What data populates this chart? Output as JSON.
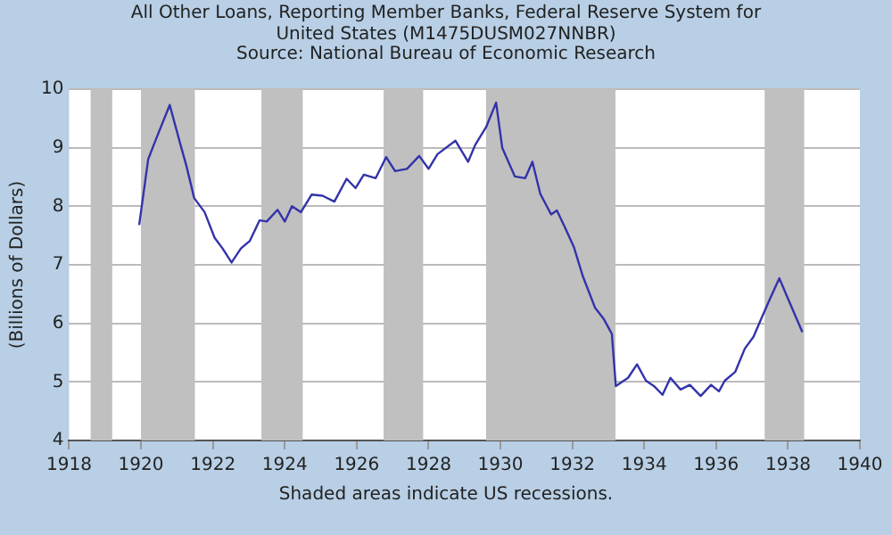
{
  "chart_data": {
    "type": "line",
    "title": "All Other Loans, Reporting Member Banks, Federal Reserve System for United States (M1475DUSM027NNBR)",
    "subtitle": "Source: National Bureau of Economic Research",
    "ylabel": "(Billions of Dollars)",
    "annotations": [
      "Shaded areas indicate US recessions."
    ],
    "series": [
      {
        "color": "#3333aa",
        "x": [
          1919.95,
          1920.2,
          1920.42,
          1920.8,
          1921.1,
          1921.26,
          1921.48,
          1921.77,
          1922.05,
          1922.27,
          1922.52,
          1922.78,
          1923.03,
          1923.3,
          1923.5,
          1923.8,
          1924.0,
          1924.2,
          1924.45,
          1924.75,
          1925.05,
          1925.38,
          1925.72,
          1925.97,
          1926.2,
          1926.53,
          1926.82,
          1927.07,
          1927.4,
          1927.74,
          1928.0,
          1928.25,
          1928.75,
          1929.1,
          1929.3,
          1929.6,
          1929.88,
          1930.05,
          1930.4,
          1930.69,
          1930.89,
          1931.11,
          1931.41,
          1931.57,
          1931.78,
          1932.04,
          1932.29,
          1932.63,
          1932.88,
          1933.1,
          1933.21,
          1933.55,
          1933.8,
          1934.05,
          1934.27,
          1934.51,
          1934.73,
          1935.01,
          1935.27,
          1935.57,
          1935.86,
          1936.08,
          1936.24,
          1936.53,
          1936.8,
          1937.04,
          1937.25,
          1937.5,
          1937.76,
          1938.0,
          1938.4
        ],
        "values": [
          7.68,
          8.8,
          9.15,
          9.73,
          9.05,
          8.7,
          8.14,
          7.9,
          7.46,
          7.28,
          7.04,
          7.28,
          7.41,
          7.76,
          7.74,
          7.94,
          7.74,
          8.0,
          7.9,
          8.2,
          8.18,
          8.08,
          8.47,
          8.31,
          8.54,
          8.48,
          8.84,
          8.6,
          8.64,
          8.86,
          8.64,
          8.89,
          9.12,
          8.76,
          9.05,
          9.35,
          9.77,
          9.0,
          8.51,
          8.48,
          8.76,
          8.21,
          7.86,
          7.93,
          7.66,
          7.31,
          6.81,
          6.27,
          6.07,
          5.82,
          4.93,
          5.07,
          5.3,
          5.02,
          4.93,
          4.78,
          5.07,
          4.87,
          4.95,
          4.76,
          4.95,
          4.84,
          5.02,
          5.17,
          5.57,
          5.77,
          6.07,
          6.42,
          6.77,
          6.42,
          5.85
        ]
      }
    ],
    "xlim": [
      1918,
      1940
    ],
    "xticks": [
      1918,
      1920,
      1922,
      1924,
      1926,
      1928,
      1930,
      1932,
      1934,
      1936,
      1938,
      1940
    ],
    "ylim": [
      4,
      10
    ],
    "yticks": [
      4,
      5,
      6,
      7,
      8,
      9,
      10
    ],
    "bands": [
      {
        "axis": "x",
        "from": 1918.6,
        "to": 1919.2,
        "color": "#c0c0c0"
      },
      {
        "axis": "x",
        "from": 1920.0,
        "to": 1921.5,
        "color": "#c0c0c0"
      },
      {
        "axis": "x",
        "from": 1923.35,
        "to": 1924.5,
        "color": "#c0c0c0"
      },
      {
        "axis": "x",
        "from": 1926.75,
        "to": 1927.85,
        "color": "#c0c0c0"
      },
      {
        "axis": "x",
        "from": 1929.6,
        "to": 1933.2,
        "color": "#c0c0c0"
      },
      {
        "axis": "x",
        "from": 1937.35,
        "to": 1938.45,
        "color": "#c0c0c0"
      }
    ],
    "grid": "y",
    "legend": false,
    "marker": "none",
    "line_style": "solid"
  }
}
